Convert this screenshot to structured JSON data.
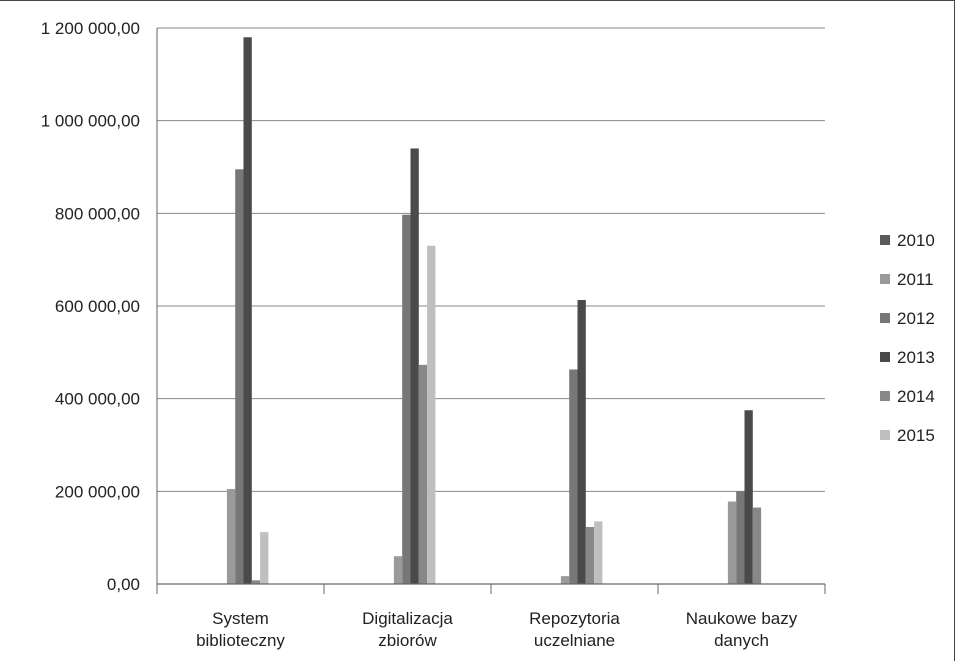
{
  "chart_data": {
    "type": "bar",
    "categories": [
      [
        "System",
        "biblioteczny"
      ],
      [
        "Digitalizacja",
        "zbiorów"
      ],
      [
        "Repozytoria",
        "uczelniane"
      ],
      [
        "Naukowe bazy",
        "danych"
      ]
    ],
    "series": [
      {
        "name": "2010",
        "color": "#5a5a5a",
        "values": [
          0,
          0,
          0,
          0
        ]
      },
      {
        "name": "2011",
        "color": "#9a9a9a",
        "values": [
          205000,
          60000,
          17000,
          178000
        ]
      },
      {
        "name": "2012",
        "color": "#777777",
        "values": [
          895000,
          797000,
          463000,
          200000
        ]
      },
      {
        "name": "2013",
        "color": "#4a4a4a",
        "values": [
          1180000,
          940000,
          613000,
          375000
        ]
      },
      {
        "name": "2014",
        "color": "#888888",
        "values": [
          8000,
          473000,
          123000,
          165000
        ]
      },
      {
        "name": "2015",
        "color": "#bfbfbf",
        "values": [
          112000,
          730000,
          135000,
          0
        ]
      }
    ],
    "ylim": [
      0,
      1200000
    ],
    "yticks": [
      0,
      200000,
      400000,
      600000,
      800000,
      1000000,
      1200000
    ],
    "ytick_labels": [
      "0,00",
      "200 000,00",
      "400 000,00",
      "600 000,00",
      "800 000,00",
      "1 000 000,00",
      "1 200 000,00"
    ],
    "grid": true,
    "legend": "right",
    "title": "",
    "xlabel": "",
    "ylabel": ""
  }
}
